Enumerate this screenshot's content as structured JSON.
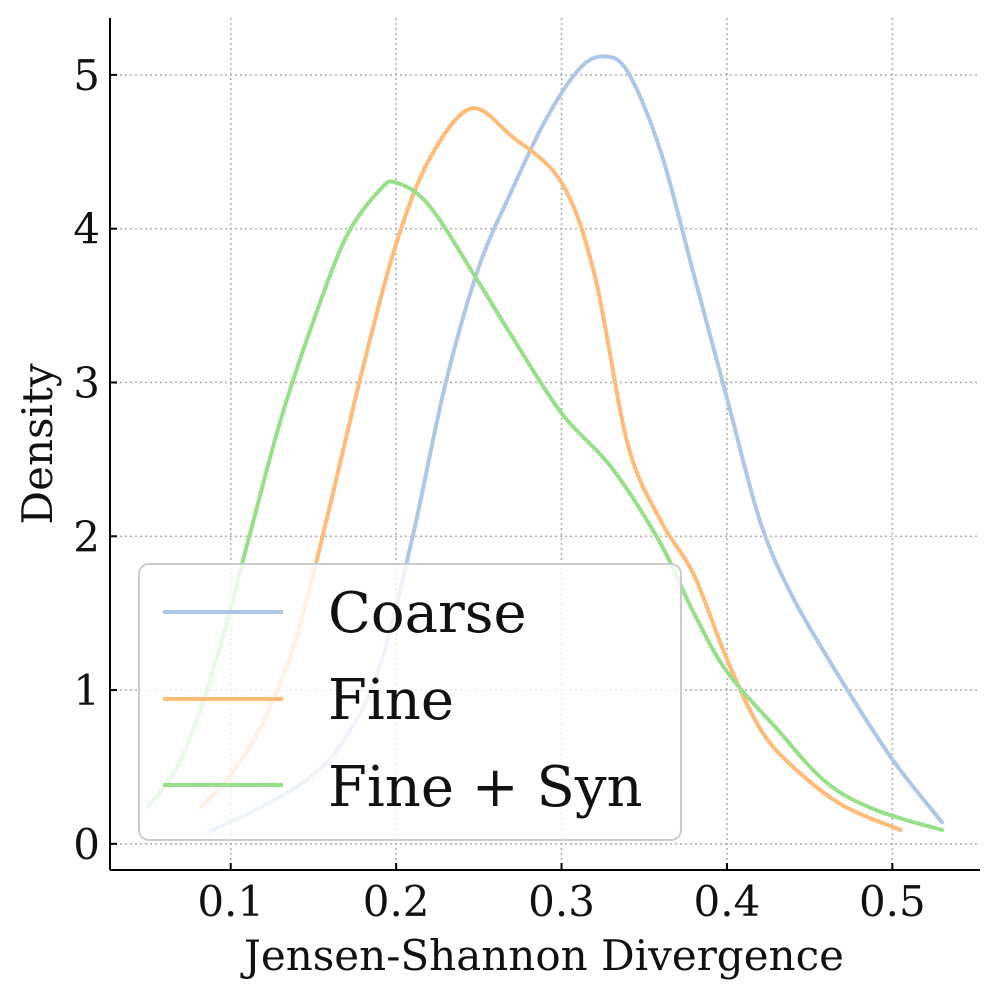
{
  "chart_data": {
    "type": "line",
    "title": "",
    "xlabel": "Jensen-Shannon Divergence",
    "ylabel": "Density",
    "xlim": [
      0.027,
      0.553
    ],
    "ylim": [
      -0.17,
      5.37
    ],
    "xticks": [
      0.1,
      0.2,
      0.3,
      0.4,
      0.5
    ],
    "yticks": [
      0,
      1,
      2,
      3,
      4,
      5
    ],
    "xtick_labels": [
      "0.1",
      "0.2",
      "0.3",
      "0.4",
      "0.5"
    ],
    "ytick_labels": [
      "0",
      "1",
      "2",
      "3",
      "4",
      "5"
    ],
    "grid": true,
    "legend_position": "lower-left",
    "series": [
      {
        "name": "Coarse",
        "color": "#aec7e8",
        "x": [
          0.087,
          0.12,
          0.15,
          0.17,
          0.19,
          0.21,
          0.23,
          0.25,
          0.27,
          0.29,
          0.31,
          0.325,
          0.34,
          0.36,
          0.38,
          0.4,
          0.42,
          0.44,
          0.47,
          0.5,
          0.53
        ],
        "y": [
          0.08,
          0.25,
          0.45,
          0.7,
          1.15,
          2.0,
          3.0,
          3.75,
          4.25,
          4.7,
          5.03,
          5.12,
          5.02,
          4.5,
          3.7,
          2.9,
          2.1,
          1.6,
          1.05,
          0.55,
          0.14
        ]
      },
      {
        "name": "Fine",
        "color": "#ffbb78",
        "x": [
          0.082,
          0.1,
          0.12,
          0.14,
          0.16,
          0.18,
          0.2,
          0.22,
          0.245,
          0.27,
          0.3,
          0.32,
          0.34,
          0.36,
          0.38,
          0.4,
          0.42,
          0.44,
          0.47,
          0.505
        ],
        "y": [
          0.24,
          0.45,
          0.8,
          1.35,
          2.2,
          3.1,
          3.9,
          4.45,
          4.78,
          4.6,
          4.3,
          3.7,
          2.6,
          2.1,
          1.75,
          1.2,
          0.75,
          0.5,
          0.25,
          0.09
        ]
      },
      {
        "name": "Fine + Syn",
        "color": "#98df8a",
        "x": [
          0.05,
          0.07,
          0.09,
          0.11,
          0.13,
          0.15,
          0.17,
          0.19,
          0.2,
          0.22,
          0.25,
          0.27,
          0.3,
          0.33,
          0.36,
          0.38,
          0.4,
          0.43,
          0.46,
          0.49,
          0.53
        ],
        "y": [
          0.24,
          0.55,
          1.15,
          1.95,
          2.75,
          3.4,
          3.95,
          4.25,
          4.3,
          4.15,
          3.65,
          3.3,
          2.8,
          2.45,
          1.95,
          1.5,
          1.12,
          0.75,
          0.4,
          0.22,
          0.09
        ]
      }
    ]
  }
}
